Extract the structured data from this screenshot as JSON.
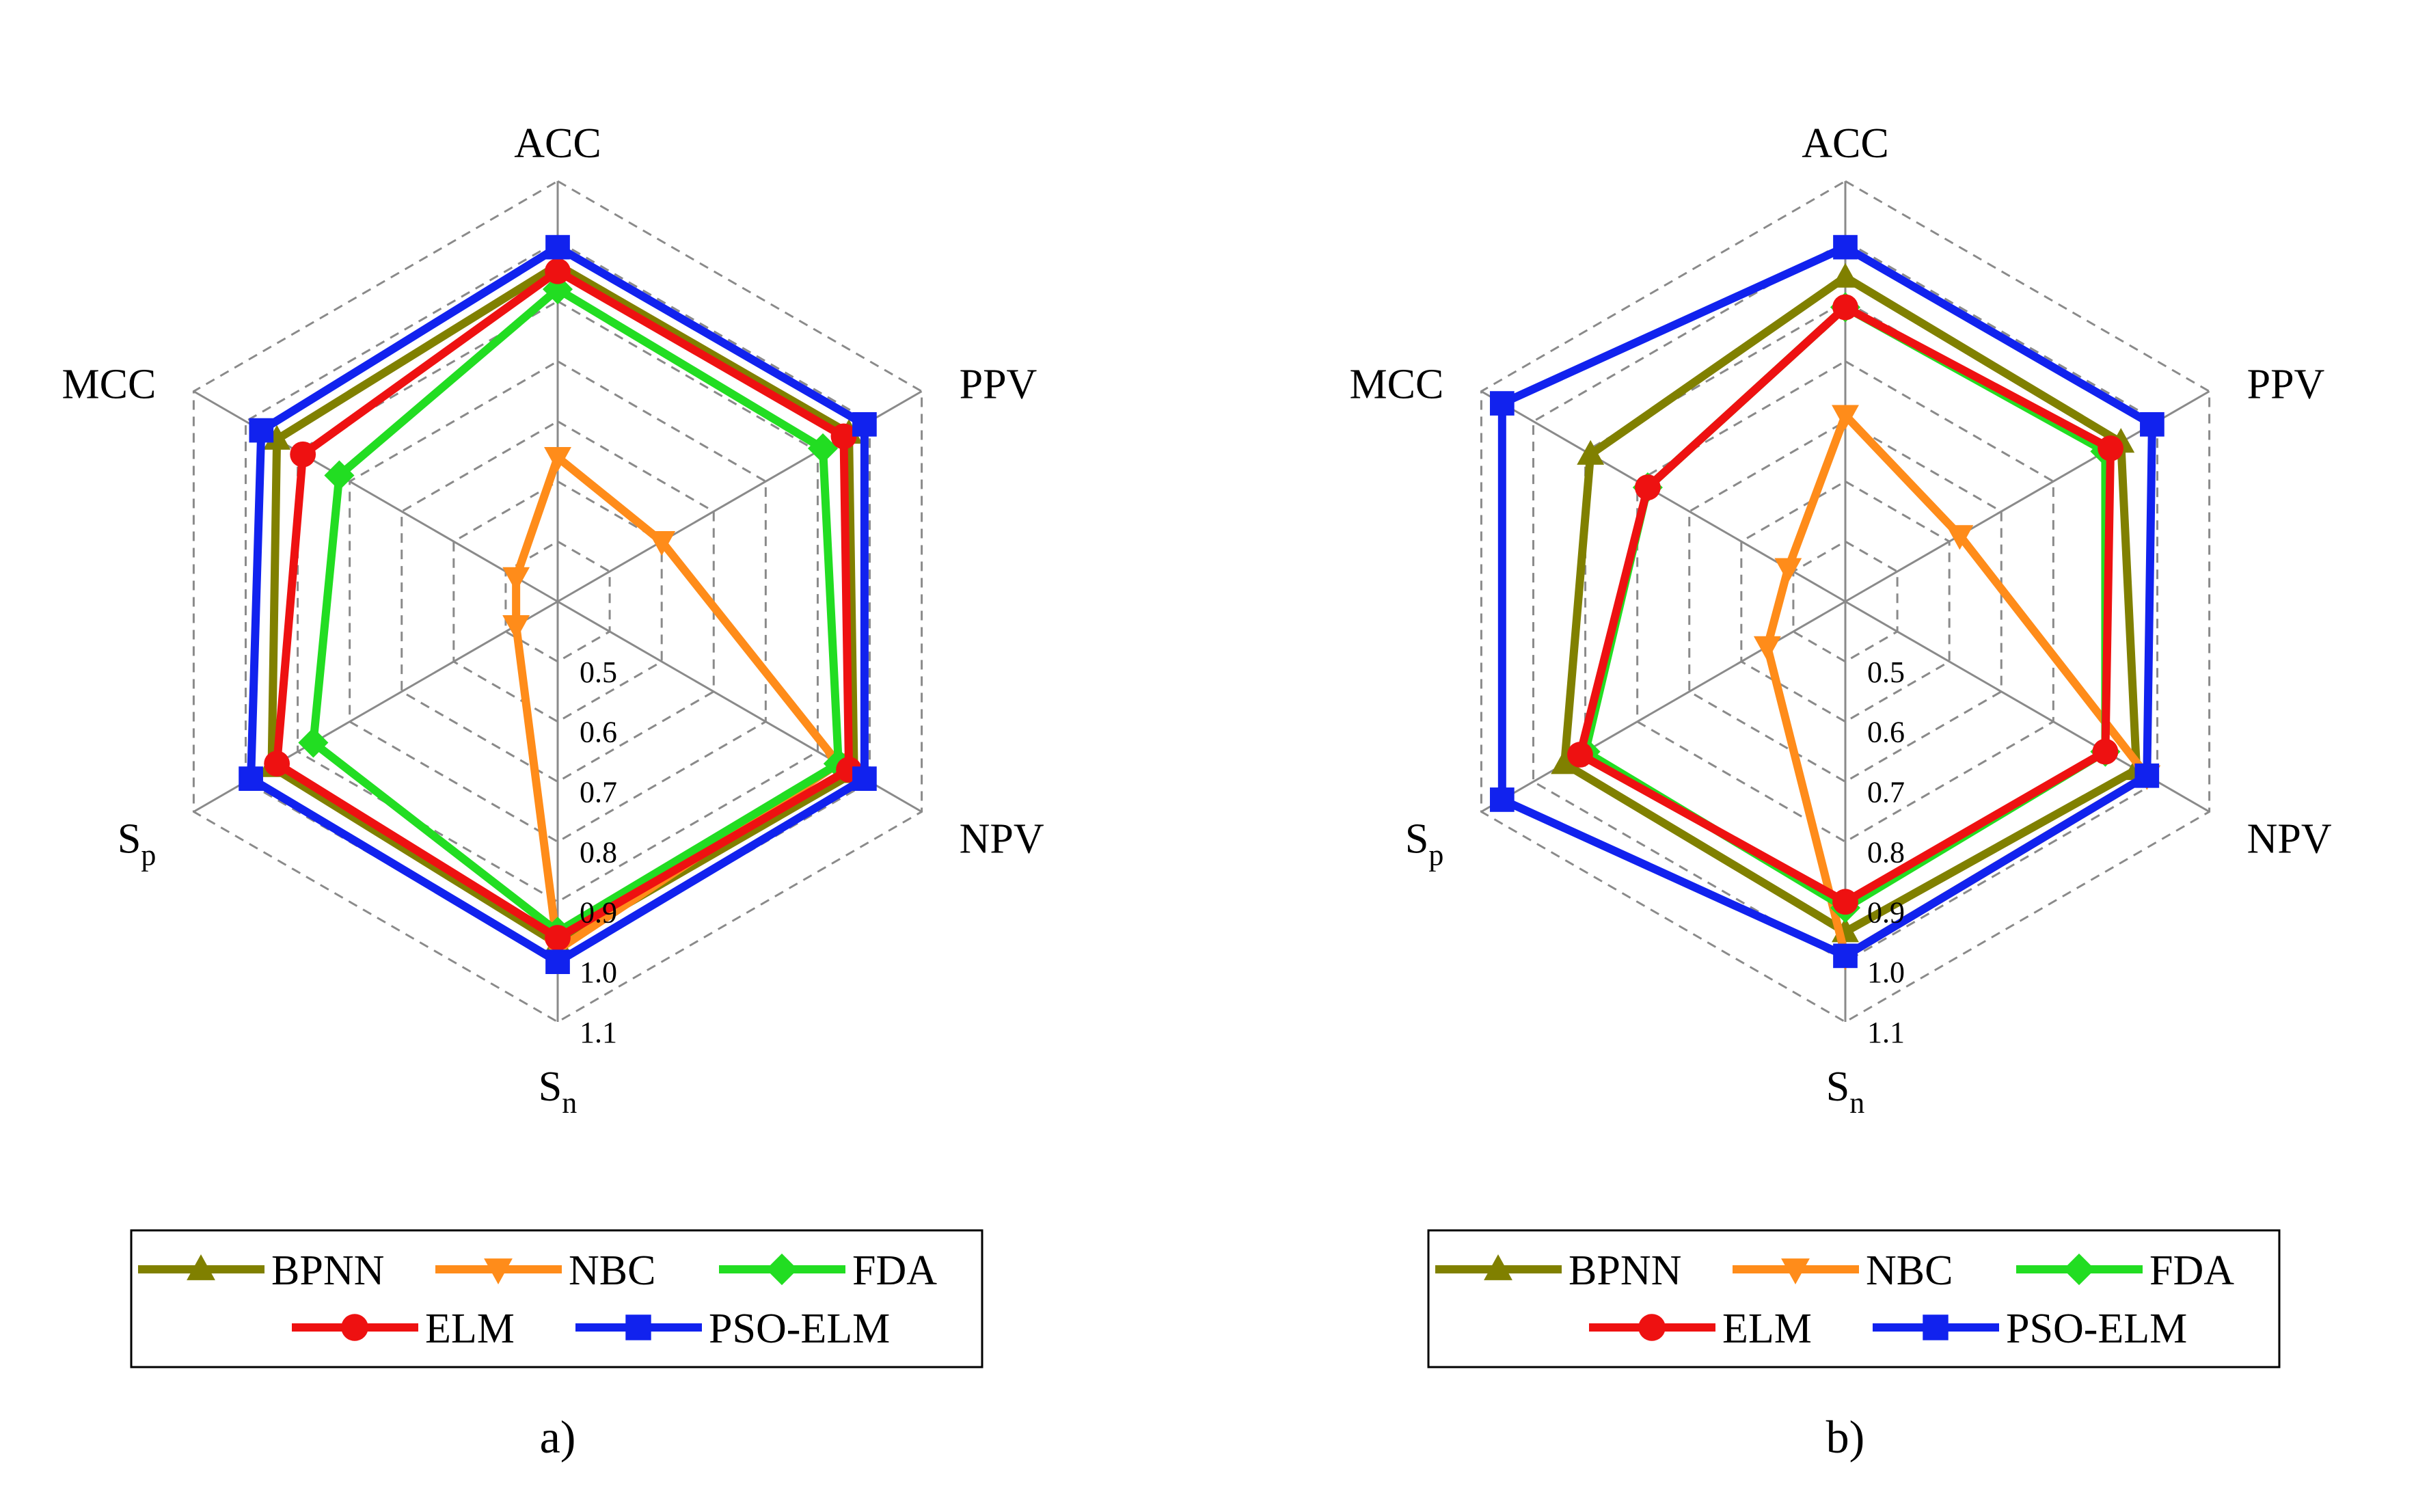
{
  "chart_data": [
    {
      "type": "radar",
      "panel_label": "a)",
      "axes": [
        {
          "label": "ACC",
          "sub": ""
        },
        {
          "label": "PPV",
          "sub": ""
        },
        {
          "label": "NPV",
          "sub": ""
        },
        {
          "label": "S",
          "sub": "n"
        },
        {
          "label": "S",
          "sub": "p"
        },
        {
          "label": "MCC",
          "sub": ""
        }
      ],
      "r_range": [
        0.4,
        1.1
      ],
      "ticks": [
        "0.5",
        "0.6",
        "0.7",
        "0.8",
        "0.9",
        "1.0",
        "1.1"
      ],
      "grid_levels": [
        0.5,
        0.6,
        0.7,
        0.8,
        0.9,
        1.0,
        1.1
      ],
      "series": [
        {
          "name": "BPNN",
          "color": "#808000",
          "marker": "triangle-up",
          "values": [
            0.96,
            0.96,
            0.97,
            0.97,
            0.95,
            0.94
          ]
        },
        {
          "name": "NBC",
          "color": "#ff8c1a",
          "marker": "triangle-down",
          "values": [
            0.64,
            0.6,
            0.94,
            0.98,
            0.48,
            0.48
          ]
        },
        {
          "name": "FDA",
          "color": "#22dd22",
          "marker": "diamond",
          "values": [
            0.92,
            0.91,
            0.94,
            0.95,
            0.87,
            0.82
          ]
        },
        {
          "name": "ELM",
          "color": "#ee1111",
          "marker": "circle",
          "values": [
            0.95,
            0.95,
            0.96,
            0.96,
            0.94,
            0.89
          ]
        },
        {
          "name": "PSO-ELM",
          "color": "#1122ee",
          "marker": "square",
          "values": [
            0.99,
            0.99,
            0.99,
            1.0,
            0.99,
            0.97
          ]
        }
      ]
    },
    {
      "type": "radar",
      "panel_label": "b)",
      "axes": [
        {
          "label": "ACC",
          "sub": ""
        },
        {
          "label": "PPV",
          "sub": ""
        },
        {
          "label": "NPV",
          "sub": ""
        },
        {
          "label": "S",
          "sub": "n"
        },
        {
          "label": "S",
          "sub": "p"
        },
        {
          "label": "MCC",
          "sub": ""
        }
      ],
      "r_range": [
        0.4,
        1.1
      ],
      "ticks": [
        "0.5",
        "0.6",
        "0.7",
        "0.8",
        "0.9",
        "1.0",
        "1.1"
      ],
      "grid_levels": [
        0.5,
        0.6,
        0.7,
        0.8,
        0.9,
        1.0,
        1.1
      ],
      "series": [
        {
          "name": "BPNN",
          "color": "#808000",
          "marker": "triangle-up",
          "values": [
            0.94,
            0.93,
            0.96,
            0.95,
            0.94,
            0.89
          ]
        },
        {
          "name": "NBC",
          "color": "#ff8c1a",
          "marker": "triangle-down",
          "values": [
            0.71,
            0.62,
            0.98,
            0.99,
            0.55,
            0.51
          ]
        },
        {
          "name": "FDA",
          "color": "#22dd22",
          "marker": "diamond",
          "values": [
            0.89,
            0.9,
            0.9,
            0.91,
            0.9,
            0.78
          ]
        },
        {
          "name": "ELM",
          "color": "#ee1111",
          "marker": "circle",
          "values": [
            0.89,
            0.91,
            0.9,
            0.9,
            0.91,
            0.78
          ]
        },
        {
          "name": "PSO-ELM",
          "color": "#1122ee",
          "marker": "square",
          "values": [
            0.99,
            0.99,
            0.98,
            0.99,
            1.06,
            1.06
          ]
        }
      ]
    }
  ]
}
